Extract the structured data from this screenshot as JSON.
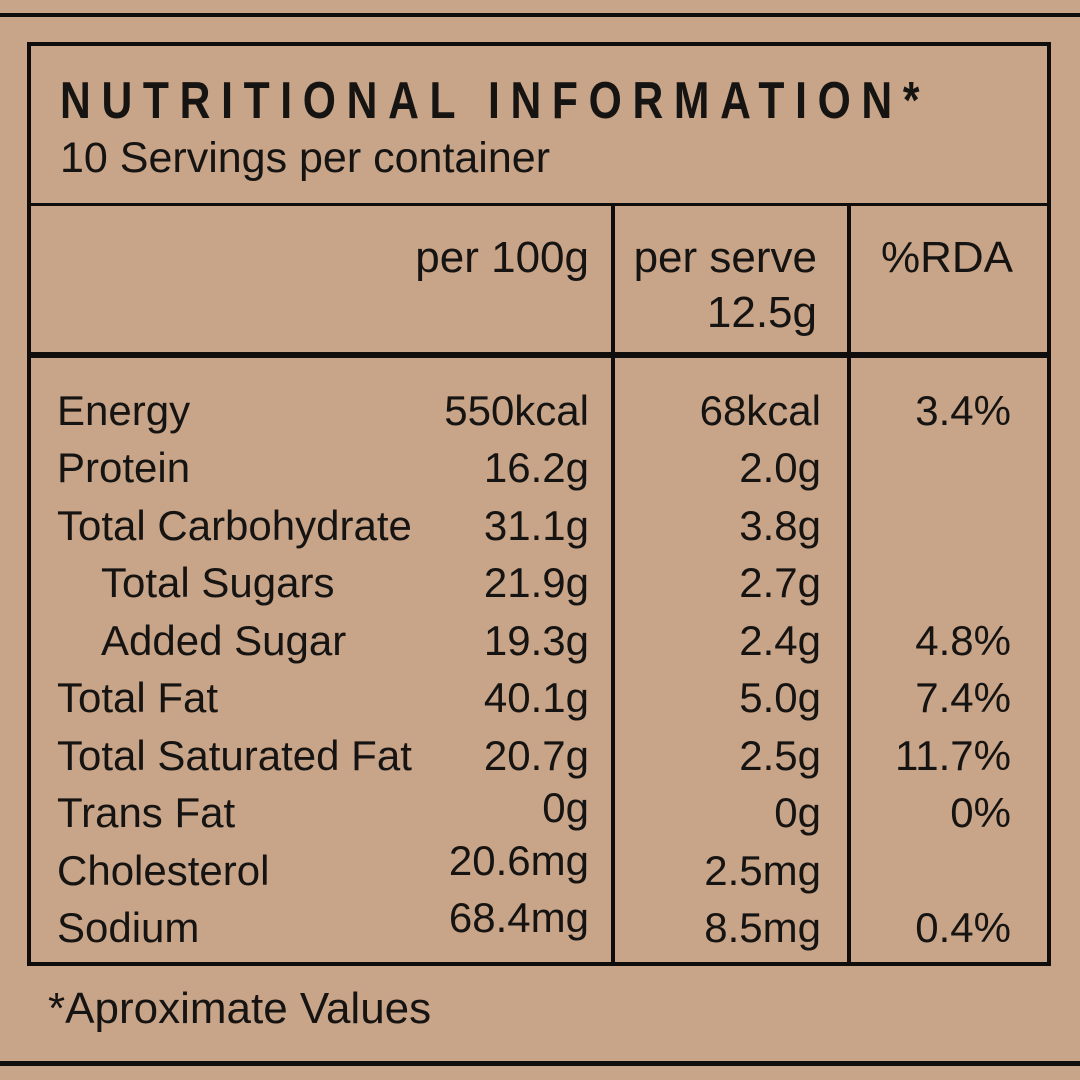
{
  "colors": {
    "background": "#C8A488",
    "ink": "#100e0c"
  },
  "header": {
    "title": "NUTRITIONAL INFORMATION*",
    "servings": "10 Servings per container"
  },
  "table": {
    "columns": {
      "per_100g": "per 100g",
      "per_serve_line1": "per serve",
      "per_serve_line2": "12.5g",
      "rda": "%RDA"
    },
    "rows": [
      {
        "name": "Energy",
        "indent": false,
        "per_100g": "550kcal",
        "per_serve": "68kcal",
        "rda": "3.4%"
      },
      {
        "name": "Protein",
        "indent": false,
        "per_100g": "16.2g",
        "per_serve": "2.0g",
        "rda": ""
      },
      {
        "name": "Total Carbohydrate",
        "indent": false,
        "per_100g": "31.1g",
        "per_serve": "3.8g",
        "rda": ""
      },
      {
        "name": "Total Sugars",
        "indent": true,
        "per_100g": "21.9g",
        "per_serve": "2.7g",
        "rda": ""
      },
      {
        "name": "Added Sugar",
        "indent": true,
        "per_100g": "19.3g",
        "per_serve": "2.4g",
        "rda": "4.8%"
      },
      {
        "name": "Total Fat",
        "indent": false,
        "per_100g": "40.1g",
        "per_serve": "5.0g",
        "rda": "7.4%"
      },
      {
        "name": "Total Saturated Fat",
        "indent": false,
        "per_100g": "20.7g",
        "per_serve": "2.5g",
        "rda": "11.7%"
      },
      {
        "name": "Trans Fat",
        "indent": false,
        "per_100g": "0g",
        "per_serve": "0g",
        "rda": "0%"
      },
      {
        "name": "Cholesterol",
        "indent": false,
        "per_100g": "20.6mg",
        "per_serve": "2.5mg",
        "rda": ""
      },
      {
        "name": "Sodium",
        "indent": false,
        "per_100g": "68.4mg",
        "per_serve": "8.5mg",
        "rda": "0.4%"
      }
    ]
  },
  "footer": {
    "note": "*Aproximate Values"
  }
}
